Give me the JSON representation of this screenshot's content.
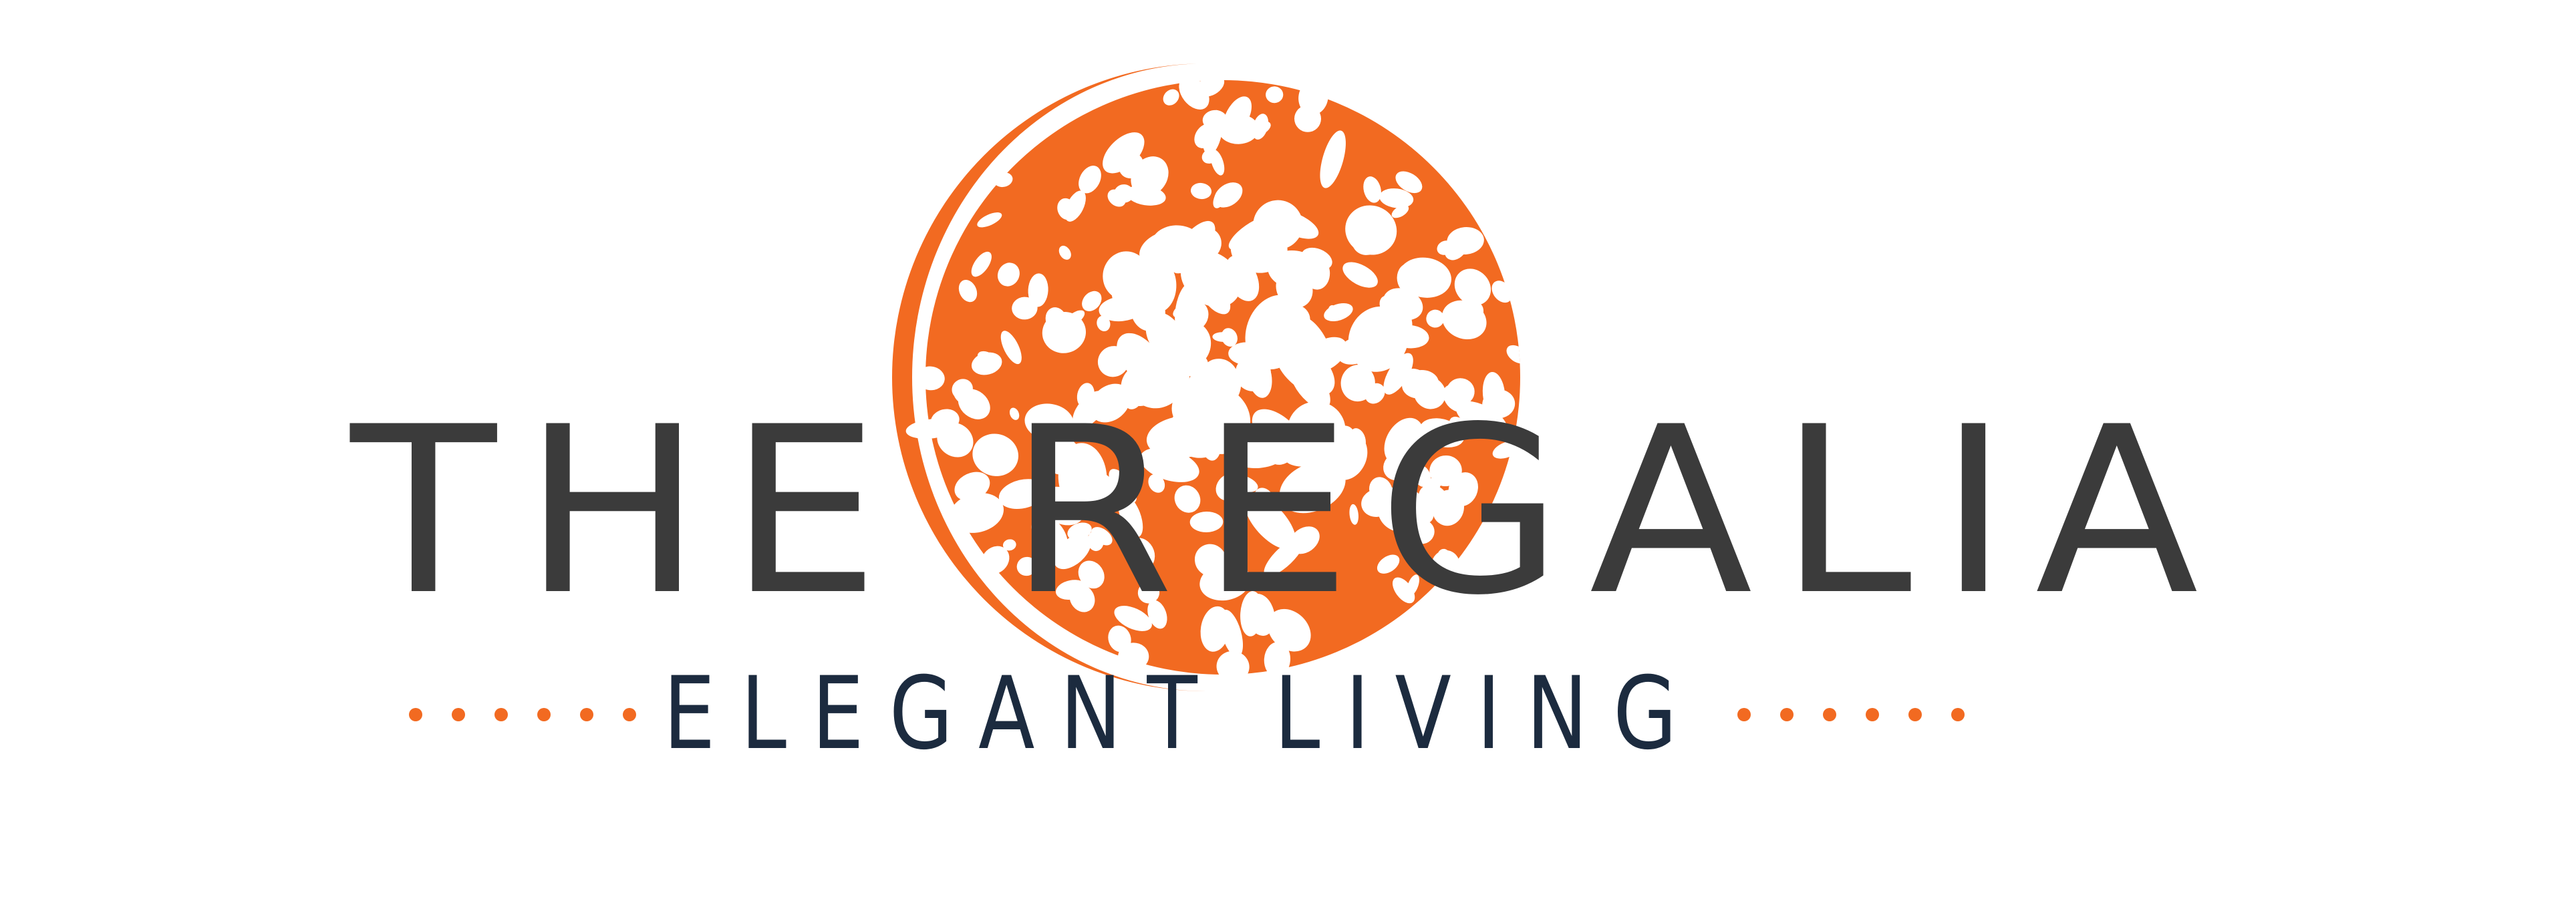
{
  "logo": {
    "brand_name": "THE REGALIA",
    "tagline": "ELEGANT LIVING",
    "emblem": "orange-textured-globe-icon",
    "colors": {
      "globe_orange": "#f26a21",
      "brand_text": "#3b3b3b",
      "tagline_text": "#1c2b3f",
      "dots": "#f26a21",
      "background": "#ffffff"
    }
  }
}
